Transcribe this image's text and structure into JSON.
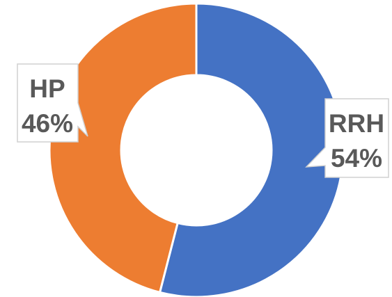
{
  "chart_data": {
    "type": "pie",
    "style": "doughnut",
    "title": "",
    "slices": [
      {
        "label": "RRH",
        "percent_label": "54%",
        "value": 54,
        "color": "#4472C4"
      },
      {
        "label": "HP",
        "percent_label": "46%",
        "value": 46,
        "color": "#ED7D31"
      }
    ],
    "legend": "none"
  }
}
